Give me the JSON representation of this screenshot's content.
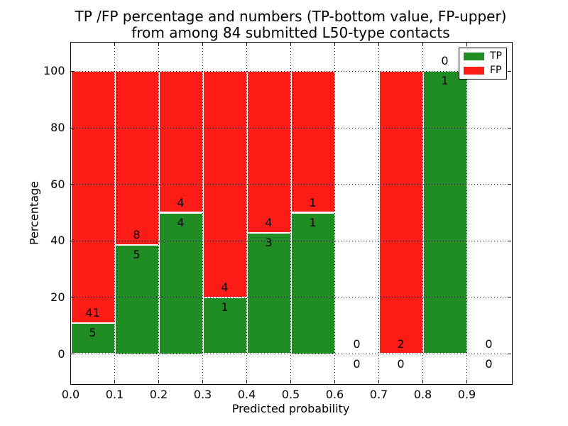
{
  "chart_data": {
    "type": "bar",
    "stacked": true,
    "title": "TP /FP percentage and numbers (TP-bottom value, FP-upper) from among 84 submitted L50-type contacts",
    "title_lines": [
      "TP /FP percentage and numbers (TP-bottom value, FP-upper)",
      "from among 84 submitted L50-type contacts"
    ],
    "xlabel": "Predicted probability",
    "ylabel": "Percentage",
    "xlim": [
      0.0,
      1.0
    ],
    "ylim": [
      -10.3,
      110.3
    ],
    "grid": true,
    "grid_style": "dotted",
    "total_contacts": 84,
    "colors": {
      "tp": "#1f8c24",
      "fp": "#ff1c16"
    },
    "x_ticks": [
      {
        "v": 0.0,
        "label": "0.0"
      },
      {
        "v": 0.1,
        "label": "0.1"
      },
      {
        "v": 0.2,
        "label": "0.2"
      },
      {
        "v": 0.3,
        "label": "0.3"
      },
      {
        "v": 0.4,
        "label": "0.4"
      },
      {
        "v": 0.5,
        "label": "0.5"
      },
      {
        "v": 0.6,
        "label": "0.6"
      },
      {
        "v": 0.7,
        "label": "0.7"
      },
      {
        "v": 0.8,
        "label": "0.8"
      },
      {
        "v": 0.9,
        "label": "0.9"
      }
    ],
    "y_ticks": [
      {
        "v": 0,
        "label": "0"
      },
      {
        "v": 20,
        "label": "20"
      },
      {
        "v": 40,
        "label": "40"
      },
      {
        "v": 60,
        "label": "60"
      },
      {
        "v": 80,
        "label": "80"
      },
      {
        "v": 100,
        "label": "100"
      }
    ],
    "categories": [
      "0.0-0.1",
      "0.1-0.2",
      "0.2-0.3",
      "0.3-0.4",
      "0.4-0.5",
      "0.5-0.6",
      "0.6-0.7",
      "0.7-0.8",
      "0.8-0.9",
      "0.9-1.0"
    ],
    "series": [
      {
        "name": "TP",
        "values": [
          5,
          5,
          4,
          1,
          3,
          1,
          0,
          0,
          1,
          0
        ]
      },
      {
        "name": "FP",
        "values": [
          41,
          8,
          4,
          4,
          4,
          1,
          0,
          2,
          0,
          0
        ]
      }
    ],
    "bins": [
      {
        "range": [
          0.0,
          0.1
        ],
        "tp": 5,
        "fp": 41
      },
      {
        "range": [
          0.1,
          0.2
        ],
        "tp": 5,
        "fp": 8
      },
      {
        "range": [
          0.2,
          0.3
        ],
        "tp": 4,
        "fp": 4
      },
      {
        "range": [
          0.3,
          0.4
        ],
        "tp": 1,
        "fp": 4
      },
      {
        "range": [
          0.4,
          0.5
        ],
        "tp": 3,
        "fp": 4
      },
      {
        "range": [
          0.5,
          0.6
        ],
        "tp": 1,
        "fp": 1
      },
      {
        "range": [
          0.6,
          0.7
        ],
        "tp": 0,
        "fp": 0
      },
      {
        "range": [
          0.7,
          0.8
        ],
        "tp": 0,
        "fp": 2
      },
      {
        "range": [
          0.8,
          0.9
        ],
        "tp": 1,
        "fp": 0
      },
      {
        "range": [
          0.9,
          1.0
        ],
        "tp": 0,
        "fp": 0
      }
    ],
    "legend": {
      "position": "upper right",
      "entries": [
        {
          "label": "TP",
          "color_key": "tp"
        },
        {
          "label": "FP",
          "color_key": "fp"
        }
      ]
    }
  }
}
